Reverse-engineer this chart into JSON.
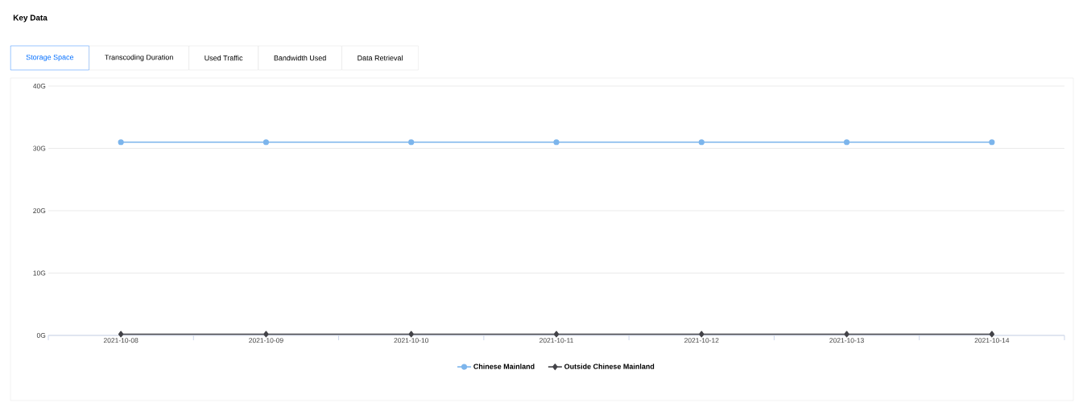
{
  "chart_data": {
    "type": "line",
    "title": "Key Data",
    "annotations": [
      "Storage Space",
      "Transcoding Duration",
      "Used Traffic",
      "Bandwidth Used",
      "Data Retrieval"
    ],
    "categories": [
      "2021-10-08",
      "2021-10-09",
      "2021-10-10",
      "2021-10-11",
      "2021-10-12",
      "2021-10-13",
      "2021-10-14"
    ],
    "series": [
      {
        "name": "Chinese Mainland",
        "color": "#7cb5ec",
        "marker": "circle",
        "values": [
          31,
          31,
          31,
          31,
          31,
          31,
          31
        ]
      },
      {
        "name": "Outside Chinese Mainland",
        "color": "#434348",
        "marker": "diamond",
        "values": [
          0.2,
          0.2,
          0.2,
          0.2,
          0.2,
          0.2,
          0.2
        ]
      }
    ],
    "ylim": [
      0,
      40
    ],
    "yticks": [
      {
        "value": 0,
        "label": "0G"
      },
      {
        "value": 10,
        "label": "10G"
      },
      {
        "value": 20,
        "label": "20G"
      },
      {
        "value": 30,
        "label": "30G"
      },
      {
        "value": 40,
        "label": "40G"
      }
    ],
    "grid": "y",
    "legend": "bottom",
    "line_style": "solid"
  }
}
